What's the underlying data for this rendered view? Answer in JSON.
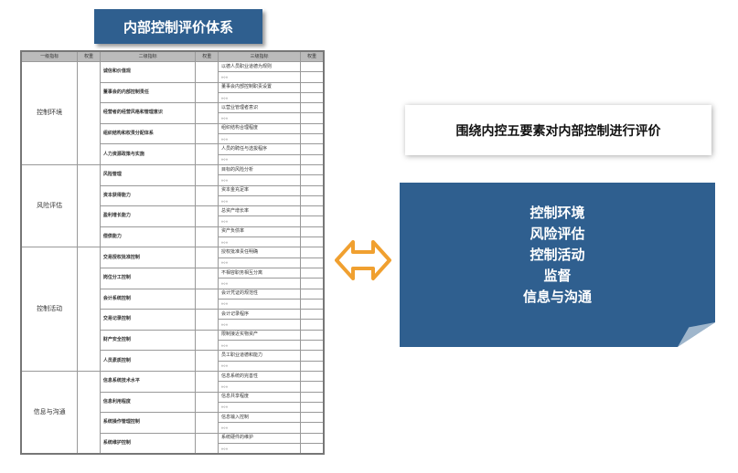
{
  "title": "内部控制评价体系",
  "table": {
    "headers": [
      "一级指标",
      "权重",
      "二级指标",
      "权重",
      "三级指标",
      "权重"
    ],
    "groups": [
      {
        "name": "控制环境",
        "items": [
          {
            "l2": "诚信和价值观",
            "l3": "以德人员职业道德为规则"
          },
          {
            "l2": "董事会的内部控制责任",
            "l3": "董事会内部控制职责设置"
          },
          {
            "l2": "经营者的经营风格和管理意识",
            "l3": "以营业管理者意识"
          },
          {
            "l2": "组织结构和权责分配体系",
            "l3": "组织结构合理程度"
          },
          {
            "l2": "人力资源政策与实施",
            "l3": "人员的聘任与选拔程序"
          }
        ]
      },
      {
        "name": "风险评估",
        "items": [
          {
            "l2": "风险管理",
            "l3": "目标的风险分析"
          },
          {
            "l2": "资本获得能力",
            "l3": "资本金充足率"
          },
          {
            "l2": "盈利增长能力",
            "l3": "总资产增长率"
          },
          {
            "l2": "偿债能力",
            "l3": "资产负债率"
          }
        ]
      },
      {
        "name": "控制活动",
        "items": [
          {
            "l2": "交易授权批准控制",
            "l3": "授权批准责任明确"
          },
          {
            "l2": "岗位分工控制",
            "l3": "不相容职务相互分离"
          },
          {
            "l2": "会计系统控制",
            "l3": "会计凭证的规范性"
          },
          {
            "l2": "交易记录控制",
            "l3": "会计记录程序"
          },
          {
            "l2": "财产安全控制",
            "l3": "限制接近实物资产"
          },
          {
            "l2": "人员素质控制",
            "l3": "员工职业道德和能力"
          }
        ]
      },
      {
        "name": "信息与沟通",
        "items": [
          {
            "l2": "信息系统技术水平",
            "l3": "信息系统的完善性"
          },
          {
            "l2": "信息利用程度",
            "l3": "信息共享程度"
          },
          {
            "l2": "系统操作管理控制",
            "l3": "信息输入控制"
          },
          {
            "l2": "系统维护控制",
            "l3": "系统硬件的维护"
          }
        ]
      }
    ],
    "ellipsis": "。。。"
  },
  "right": {
    "heading": "围绕内控五要素对内部控制进行评价",
    "elements": [
      "控制环境",
      "风险评估",
      "控制活动",
      "监督",
      "信息与沟通"
    ]
  },
  "colors": {
    "accent": "#2f5f8f",
    "arrow": "#f0a030"
  }
}
